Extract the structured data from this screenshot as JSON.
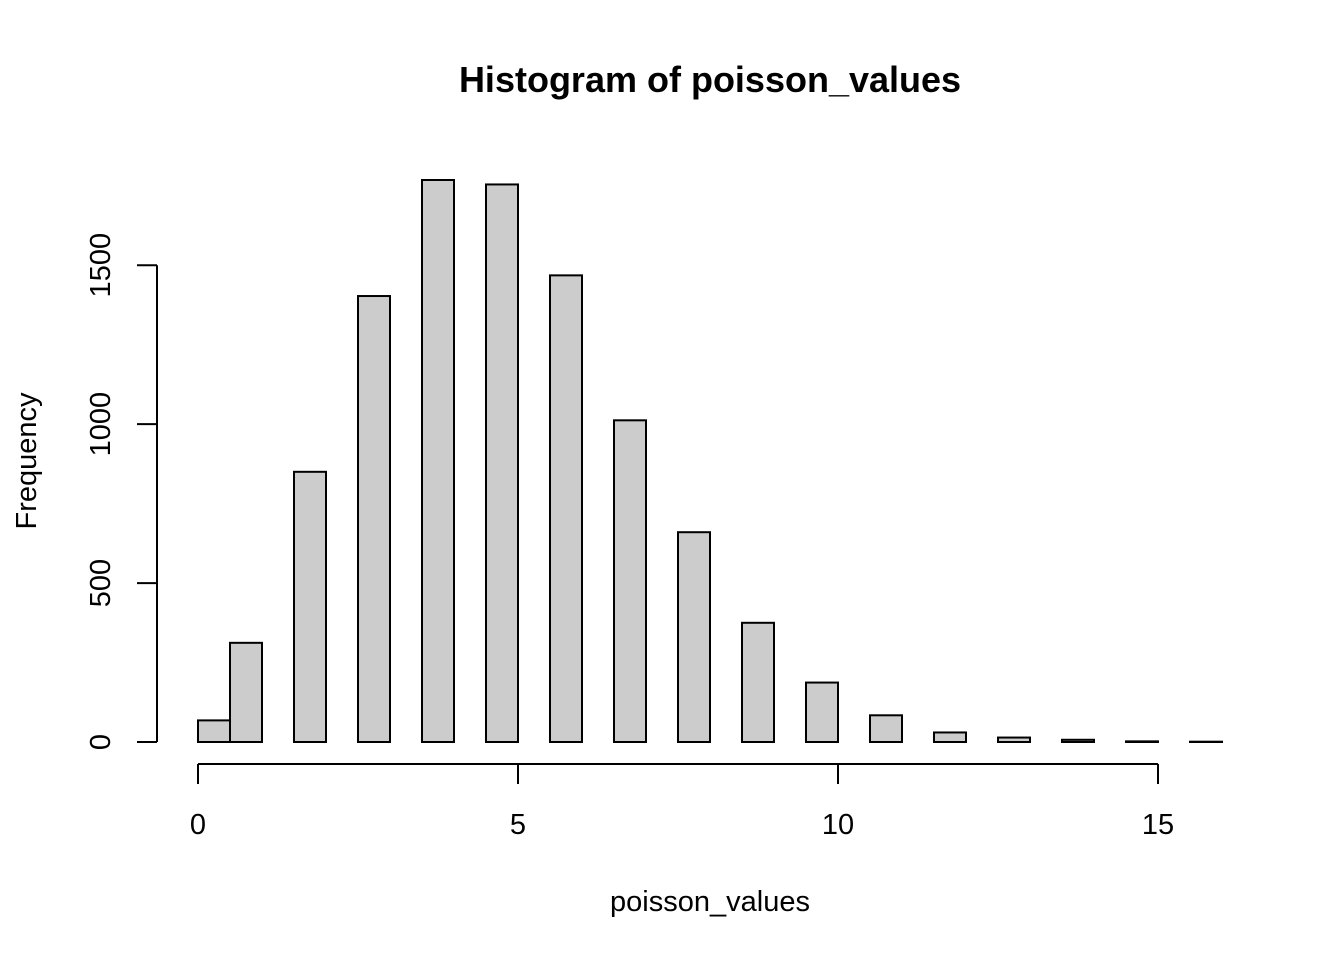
{
  "chart_data": {
    "type": "bar",
    "title": "Histogram of poisson_values",
    "xlabel": "poisson_values",
    "ylabel": "Frequency",
    "bins": [
      {
        "x0": 0.0,
        "x1": 0.5,
        "count": 68
      },
      {
        "x0": 0.5,
        "x1": 1.0,
        "count": 312
      },
      {
        "x0": 1.5,
        "x1": 2.0,
        "count": 850
      },
      {
        "x0": 2.5,
        "x1": 3.0,
        "count": 1403
      },
      {
        "x0": 3.5,
        "x1": 4.0,
        "count": 1768
      },
      {
        "x0": 4.5,
        "x1": 5.0,
        "count": 1754
      },
      {
        "x0": 5.5,
        "x1": 6.0,
        "count": 1468
      },
      {
        "x0": 6.5,
        "x1": 7.0,
        "count": 1012
      },
      {
        "x0": 7.5,
        "x1": 8.0,
        "count": 660
      },
      {
        "x0": 8.5,
        "x1": 9.0,
        "count": 375
      },
      {
        "x0": 9.5,
        "x1": 10.0,
        "count": 187
      },
      {
        "x0": 10.5,
        "x1": 11.0,
        "count": 84
      },
      {
        "x0": 11.5,
        "x1": 12.0,
        "count": 30
      },
      {
        "x0": 12.5,
        "x1": 13.0,
        "count": 14
      },
      {
        "x0": 13.5,
        "x1": 14.0,
        "count": 7
      },
      {
        "x0": 14.5,
        "x1": 15.0,
        "count": 2
      },
      {
        "x0": 15.5,
        "x1": 16.0,
        "count": 1
      }
    ],
    "xlim": [
      0,
      16
    ],
    "ylim": [
      0,
      1768
    ],
    "x_ticks": [
      0,
      5,
      10,
      15
    ],
    "x_tick_labels": [
      "0",
      "5",
      "10",
      "15"
    ],
    "y_ticks": [
      0,
      500,
      1000,
      1500
    ],
    "y_tick_labels": [
      "0",
      "500",
      "1000",
      "1500"
    ],
    "grid": false,
    "legend": "none",
    "colors": {
      "bar_fill": "#cccccc",
      "bar_stroke": "#000000",
      "axis": "#000000",
      "background": "#ffffff"
    }
  }
}
